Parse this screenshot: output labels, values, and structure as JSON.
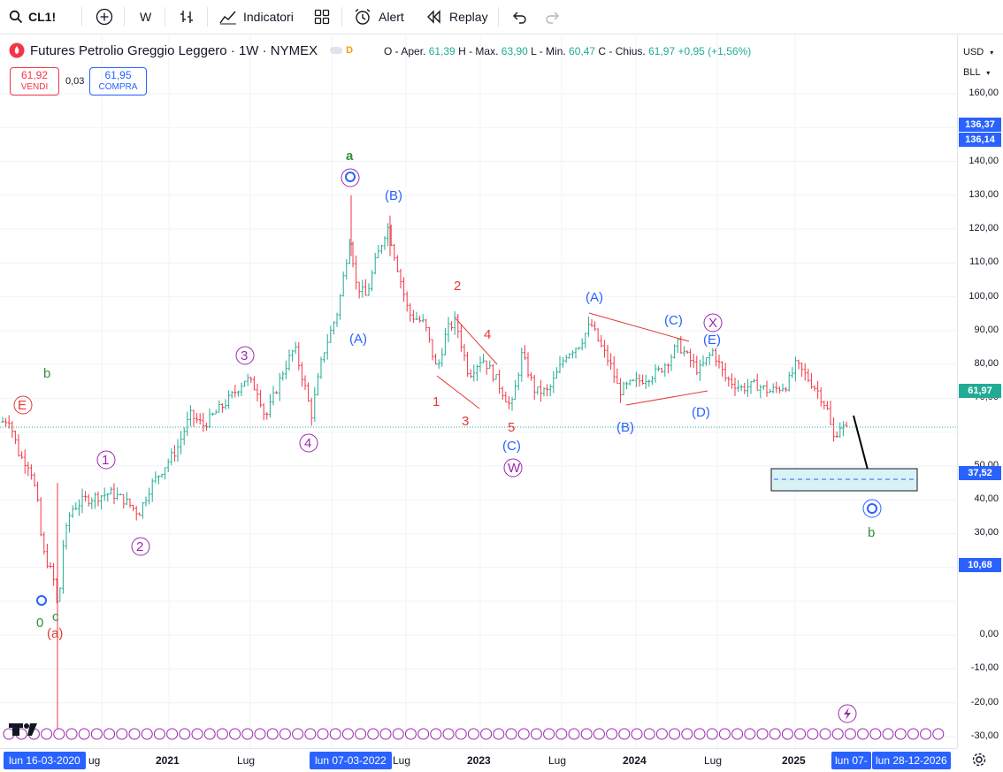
{
  "toolbar": {
    "symbol": "CL1!",
    "interval": "W",
    "indicators_label": "Indicatori",
    "alert_label": "Alert",
    "replay_label": "Replay"
  },
  "legend": {
    "title": "Futures Petrolio Greggio Leggero · 1W · NYMEX",
    "badge": "D",
    "open_label": "O - Aper.",
    "open": "61,39",
    "high_label": "H - Max.",
    "high": "63,90",
    "low_label": "L - Min.",
    "low": "60,47",
    "close_label": "C - Chius.",
    "close": "61,97",
    "change": "+0,95 (+1,56%)"
  },
  "trade": {
    "sell_price": "61,92",
    "sell_label": "VENDI",
    "spread": "0,03",
    "buy_price": "61,95",
    "buy_label": "COMPRA"
  },
  "price_axis": {
    "currency": "USD",
    "unit": "BLL",
    "ticks": [
      "160,00",
      "150,00",
      "140,00",
      "130,00",
      "120,00",
      "110,00",
      "100,00",
      "90,00",
      "80,00",
      "70,00",
      "50,00",
      "40,00",
      "30,00",
      "20,00",
      "0,00",
      "-10,00",
      "-20,00",
      "-30,00"
    ],
    "tags": [
      {
        "label": "136,37",
        "color": "#2962ff"
      },
      {
        "label": "136,14",
        "color": "#2962ff"
      },
      {
        "label": "61,97",
        "color": "#22ab94"
      },
      {
        "label": "37,52",
        "color": "#2962ff"
      },
      {
        "label": "10,68",
        "color": "#2962ff"
      }
    ]
  },
  "time_axis": {
    "ticks": [
      "ug",
      "2021",
      "Lug",
      "Lug",
      "2023",
      "Lug",
      "2024",
      "Lug",
      "2025"
    ],
    "start_tag": "lun 16-03-2020",
    "mid_tag": "lun 07-03-2022",
    "end_tag_a": "lun 07-",
    "end_tag_b": "lun 28-12-2026"
  },
  "waves": {
    "blue_a": "(A)",
    "blue_b": "(B)",
    "blue_c": "(C)",
    "blue_d": "(D)",
    "blue_e": "(E)",
    "red_1": "1",
    "red_2": "2",
    "red_3": "3",
    "red_4": "4",
    "red_5": "5",
    "red_a": "(a)",
    "red_e": "E",
    "purple_1": "1",
    "purple_2": "2",
    "purple_3": "3",
    "purple_4": "4",
    "purple_w": "W",
    "purple_x": "X",
    "green_a": "a",
    "green_b": "b",
    "green_c": "c",
    "green_0": "0"
  },
  "colors": {
    "up": "#22ab94",
    "down": "#f23645",
    "blue_wave": "#2962ff",
    "purple_wave": "#9c27b0",
    "red_wave": "#e53935",
    "green_wave": "#388e3c",
    "accent": "#2962ff"
  }
}
